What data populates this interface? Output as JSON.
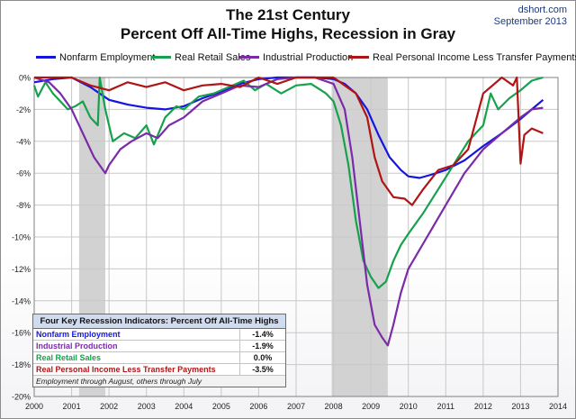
{
  "title_line1": "The 21st Century",
  "title_line2": "Percent Off All-Time Highs, Recession in Gray",
  "source_line1": "dshort.com",
  "source_line2": "September 2013",
  "legend": [
    {
      "label": "Nonfarm Employment",
      "color": "#1515e0"
    },
    {
      "label": "Real Retail Sales",
      "color": "#16a24c"
    },
    {
      "label": "Industrial Production",
      "color": "#7a2ba8"
    },
    {
      "label": "Real Personal Income Less Transfer Payments",
      "color": "#b01515"
    }
  ],
  "table": {
    "header": "Four Key Recession Indicators: Percent Off All-Time Highs",
    "rows": [
      {
        "name": "Nonfarm Employment",
        "value": "-1.4%",
        "color": "#1515e0"
      },
      {
        "name": "Industrial Production",
        "value": "-1.9%",
        "color": "#7a2ba8"
      },
      {
        "name": "Real Retail Sales",
        "value": "0.0%",
        "color": "#16a24c"
      },
      {
        "name": "Real Personal Income Less Transfer Payments",
        "value": "-3.5%",
        "color": "#b01515"
      }
    ],
    "note": "Employment through August, others through July"
  },
  "chart_data": {
    "type": "line",
    "xlim": [
      2000,
      2014
    ],
    "ylim": [
      -20,
      0
    ],
    "x_ticks": [
      "2000",
      "2001",
      "2002",
      "2003",
      "2004",
      "2005",
      "2006",
      "2007",
      "2008",
      "2009",
      "2010",
      "2011",
      "2012",
      "2013",
      "2014"
    ],
    "y_ticks": [
      "0%",
      "-2%",
      "-4%",
      "-6%",
      "-8%",
      "-10%",
      "-12%",
      "-14%",
      "-16%",
      "-18%",
      "-20%"
    ],
    "grid": true,
    "legend_position": "top",
    "recessions": [
      [
        2001.2,
        2001.9
      ],
      [
        2007.95,
        2009.45
      ]
    ],
    "series": [
      {
        "name": "Nonfarm Employment",
        "color": "#1515e0",
        "x": [
          2000,
          2000.5,
          2001,
          2001.5,
          2002,
          2002.5,
          2003,
          2003.5,
          2004,
          2004.5,
          2005,
          2005.5,
          2006,
          2006.5,
          2007,
          2007.5,
          2008,
          2008.3,
          2008.6,
          2008.9,
          2009.2,
          2009.5,
          2009.8,
          2010,
          2010.3,
          2010.6,
          2011,
          2011.5,
          2012,
          2012.5,
          2013,
          2013.3,
          2013.6
        ],
        "y": [
          -0.3,
          -0.1,
          0,
          -0.6,
          -1.4,
          -1.7,
          -1.9,
          -2.0,
          -1.8,
          -1.3,
          -0.9,
          -0.4,
          -0.1,
          0,
          0,
          0,
          -0.1,
          -0.4,
          -1.0,
          -2.0,
          -3.6,
          -5.0,
          -5.8,
          -6.2,
          -6.3,
          -6.1,
          -5.8,
          -5.2,
          -4.3,
          -3.5,
          -2.6,
          -2.0,
          -1.4
        ]
      },
      {
        "name": "Real Retail Sales",
        "color": "#16a24c",
        "x": [
          2000,
          2000.1,
          2000.3,
          2000.5,
          2000.7,
          2000.9,
          2001.1,
          2001.3,
          2001.5,
          2001.7,
          2001.75,
          2001.9,
          2002.1,
          2002.4,
          2002.7,
          2003,
          2003.2,
          2003.5,
          2003.8,
          2004,
          2004.4,
          2004.8,
          2005.2,
          2005.6,
          2005.9,
          2006.2,
          2006.6,
          2007,
          2007.4,
          2007.8,
          2008,
          2008.2,
          2008.4,
          2008.6,
          2008.8,
          2009,
          2009.2,
          2009.4,
          2009.6,
          2009.8,
          2010,
          2010.4,
          2010.8,
          2011.2,
          2011.6,
          2012,
          2012.2,
          2012.4,
          2012.7,
          2013,
          2013.3,
          2013.6
        ],
        "y": [
          -0.5,
          -1.2,
          -0.3,
          -1.0,
          -1.5,
          -2.0,
          -1.8,
          -1.5,
          -2.5,
          -3.0,
          0,
          -2.0,
          -4.0,
          -3.5,
          -3.8,
          -3.0,
          -4.2,
          -2.5,
          -1.8,
          -2.0,
          -1.2,
          -1.0,
          -0.6,
          -0.2,
          -0.8,
          -0.4,
          -1.0,
          -0.5,
          -0.4,
          -1.0,
          -1.5,
          -3.0,
          -5.5,
          -9.0,
          -11.5,
          -12.5,
          -13.2,
          -12.8,
          -11.5,
          -10.5,
          -9.8,
          -8.5,
          -7.0,
          -5.5,
          -4.0,
          -3.0,
          -1.0,
          -2.0,
          -1.3,
          -0.8,
          -0.2,
          0
        ]
      },
      {
        "name": "Industrial Production",
        "color": "#7a2ba8",
        "x": [
          2000,
          2000.4,
          2000.7,
          2001,
          2001.3,
          2001.6,
          2001.9,
          2002,
          2002.3,
          2002.6,
          2003,
          2003.3,
          2003.6,
          2004,
          2004.5,
          2005,
          2005.5,
          2006,
          2006.5,
          2007,
          2007.5,
          2008,
          2008.3,
          2008.5,
          2008.7,
          2008.9,
          2009.1,
          2009.3,
          2009.45,
          2009.6,
          2009.8,
          2010,
          2010.5,
          2011,
          2011.5,
          2012,
          2012.5,
          2013,
          2013.3,
          2013.6
        ],
        "y": [
          0,
          -0.3,
          -1.0,
          -2.0,
          -3.5,
          -5.0,
          -6.0,
          -5.5,
          -4.5,
          -4.0,
          -3.5,
          -3.8,
          -3.0,
          -2.5,
          -1.5,
          -1.0,
          -0.5,
          -0.6,
          -0.1,
          0,
          0,
          -0.4,
          -2.0,
          -5.0,
          -9.0,
          -13.0,
          -15.5,
          -16.3,
          -16.8,
          -15.5,
          -13.5,
          -12.0,
          -10.0,
          -8.0,
          -6.0,
          -4.5,
          -3.5,
          -2.5,
          -2.0,
          -1.9
        ]
      },
      {
        "name": "Real Personal Income Less Transfer Payments",
        "color": "#b01515",
        "x": [
          2000,
          2000.5,
          2001,
          2001.5,
          2002,
          2002.5,
          2003,
          2003.5,
          2004,
          2004.5,
          2005,
          2005.5,
          2006,
          2006.5,
          2007,
          2007.5,
          2008,
          2008.3,
          2008.6,
          2008.9,
          2009.1,
          2009.3,
          2009.6,
          2009.9,
          2010.1,
          2010.4,
          2010.8,
          2011.2,
          2011.6,
          2012,
          2012.5,
          2012.8,
          2012.9,
          2013,
          2013.1,
          2013.3,
          2013.6
        ],
        "y": [
          0,
          0,
          0,
          -0.5,
          -0.8,
          -0.3,
          -0.6,
          -0.3,
          -0.8,
          -0.5,
          -0.4,
          -0.6,
          0,
          -0.4,
          0,
          0,
          0,
          -0.5,
          -1.0,
          -2.5,
          -5.0,
          -6.5,
          -7.5,
          -7.6,
          -8.0,
          -7.0,
          -5.8,
          -5.5,
          -4.5,
          -1.0,
          0,
          -0.5,
          0,
          -5.4,
          -3.6,
          -3.2,
          -3.5
        ]
      }
    ]
  }
}
